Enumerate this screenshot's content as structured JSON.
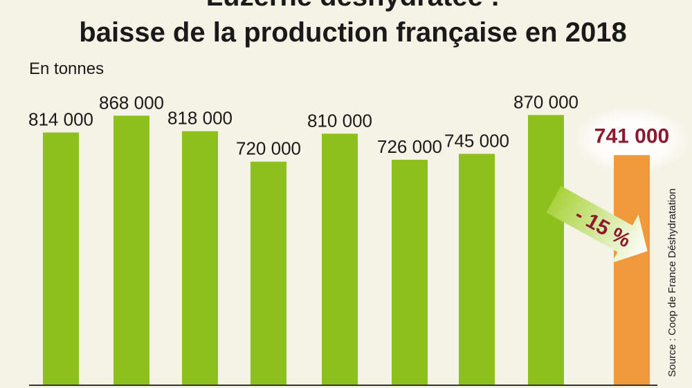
{
  "chart_data": {
    "type": "bar",
    "title": "Luzerne déshydratée :",
    "subtitle": "baisse de la production française en 2018",
    "ylabel": "En tonnes",
    "ylim": [
      0,
      900000
    ],
    "values": [
      814000,
      868000,
      818000,
      720000,
      810000,
      726000,
      745000,
      870000,
      741000
    ],
    "value_labels": [
      "814 000",
      "868 000",
      "818 000",
      "720 000",
      "810 000",
      "726 000",
      "745 000",
      "870 000",
      "741 000"
    ],
    "highlight_index": 8,
    "change_label": "- 15 %",
    "source": "Source : Coop de France Déshydratation",
    "grid": false,
    "colors": {
      "bar": "#8dbf1d",
      "highlight_bar": "#f0993a",
      "highlight_text": "#8b1a2e",
      "background": "#f5f3e6",
      "axis": "#333333",
      "arrow_start": "#a9d23c",
      "arrow_end": "#ffffff"
    }
  }
}
